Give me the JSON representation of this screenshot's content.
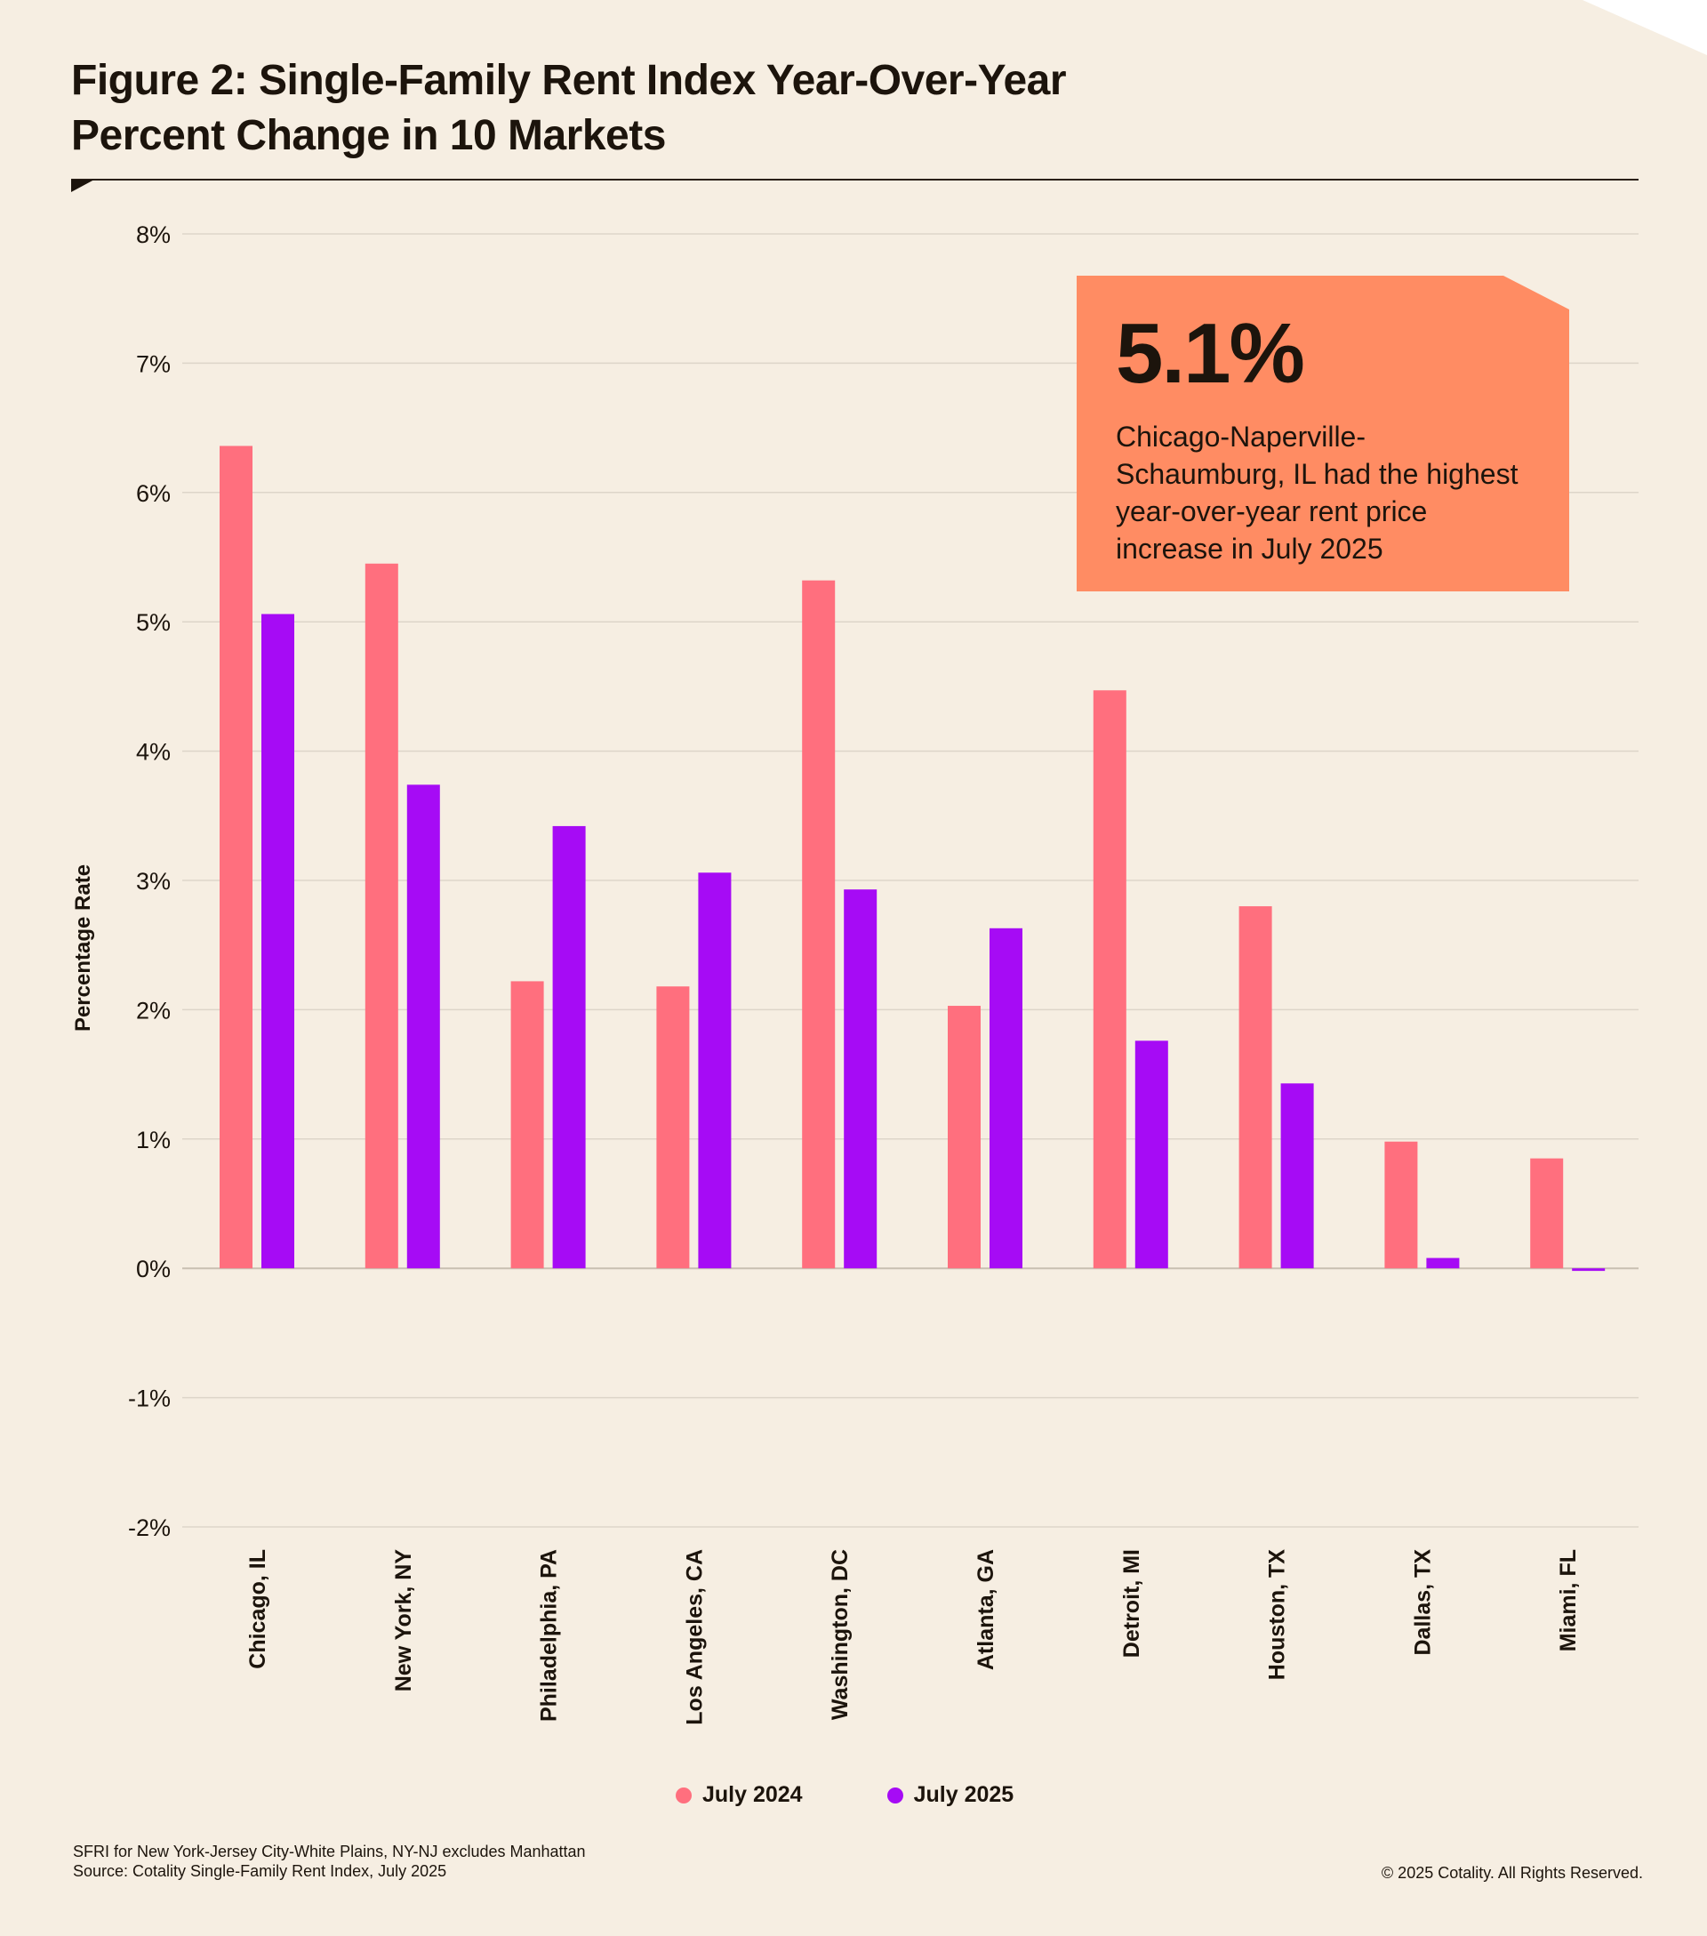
{
  "title_line1": "Figure 2: Single-Family Rent Index Year-Over-Year",
  "title_line2": "Percent Change in 10 Markets",
  "chart_data": {
    "type": "bar",
    "ylabel": "Percentage Rate",
    "xlabel": "",
    "ylim": [
      -2,
      8
    ],
    "yticks": [
      8,
      7,
      6,
      5,
      4,
      3,
      2,
      1,
      0,
      -1,
      -2
    ],
    "ytick_labels": [
      "8%",
      "7%",
      "6%",
      "5%",
      "4%",
      "3%",
      "2%",
      "1%",
      "0%",
      "-1%",
      "-2%"
    ],
    "categories": [
      "Chicago, IL",
      "New York, NY",
      "Philadelphia, PA",
      "Los Angeles, CA",
      "Washington, DC",
      "Atlanta, GA",
      "Detroit, MI",
      "Houston, TX",
      "Dallas, TX",
      "Miami, FL"
    ],
    "series": [
      {
        "name": "July 2024",
        "color": "#ff6f7e",
        "values": [
          6.36,
          5.45,
          2.22,
          2.18,
          5.32,
          2.03,
          4.47,
          2.8,
          0.98,
          0.85
        ]
      },
      {
        "name": "July 2025",
        "color": "#a60bf5",
        "values": [
          5.06,
          3.74,
          3.42,
          3.06,
          2.93,
          2.63,
          1.76,
          1.43,
          0.08,
          -0.02
        ]
      }
    ],
    "grid": true,
    "legend_position": "bottom-center"
  },
  "callout": {
    "value": "5.1%",
    "text": "Chicago-Naperville-Schaumburg, IL had the highest year-over-year rent price increase in July 2025"
  },
  "footnote": {
    "line1": "SFRI for New York-Jersey City-White Plains, NY-NJ excludes Manhattan",
    "line2": "Source: Cotality Single-Family Rent Index, July 2025"
  },
  "copyright": "© 2025 Cotality. All Rights Reserved."
}
